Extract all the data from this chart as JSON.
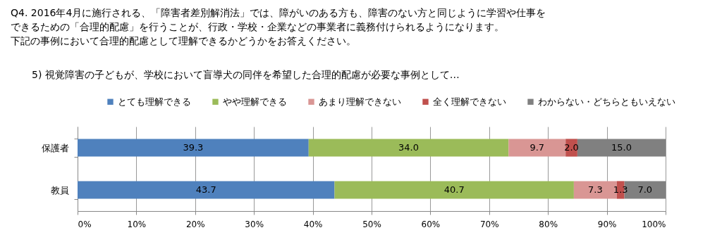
{
  "chart_data": {
    "type": "bar",
    "orientation": "horizontal",
    "stacked": true,
    "title": "Q4. 2016年4月に施行される、「障害者差別解消法」では、障がいのある方も、障害のない方と同じように学習や仕事をできるための「合理的配慮」を行うことが、行政・学校・企業などの事業者に義務付けられるようになります。",
    "subtitle": "下記の事例において合理的配慮として理解できるかどうかをお答えください。",
    "annotations": [
      "5) 視覚障害の子どもが、学校において盲導犬の同伴を希望した合理的配慮が必要な事例として…"
    ],
    "categories": [
      "保護者",
      "教員"
    ],
    "series": [
      {
        "name": "とても理解できる",
        "color": "#4f81bd",
        "values": [
          39.3,
          43.7
        ],
        "value_labels": [
          "39.3",
          "43.7"
        ]
      },
      {
        "name": "やや理解できる",
        "color": "#9bbb59",
        "values": [
          34.0,
          40.7
        ],
        "value_labels": [
          "34.0",
          "40.7"
        ]
      },
      {
        "name": "あまり理解できない",
        "color": "#d99694",
        "values": [
          9.7,
          7.3
        ],
        "value_labels": [
          "9.7",
          "7.3"
        ]
      },
      {
        "name": "全く理解できない",
        "color": "#c0504d",
        "values": [
          2.0,
          1.3
        ],
        "value_labels": [
          "2.0",
          "1.3"
        ]
      },
      {
        "name": "わからない・どちらともいえない",
        "color": "#808080",
        "values": [
          15.0,
          7.0
        ],
        "value_labels": [
          "15.0",
          "7.0"
        ]
      }
    ],
    "xlim": [
      0,
      100
    ],
    "xticks": [
      {
        "value": 0,
        "label": "0%"
      },
      {
        "value": 10,
        "label": "10%"
      },
      {
        "value": 20,
        "label": "20%"
      },
      {
        "value": 30,
        "label": "30%"
      },
      {
        "value": 40,
        "label": "40%"
      },
      {
        "value": 50,
        "label": "50%"
      },
      {
        "value": 60,
        "label": "60%"
      },
      {
        "value": 70,
        "label": "70%"
      },
      {
        "value": 80,
        "label": "80%"
      },
      {
        "value": 90,
        "label": "90%"
      },
      {
        "value": 100,
        "label": "100%"
      }
    ],
    "grid": "x",
    "legend": "top"
  }
}
